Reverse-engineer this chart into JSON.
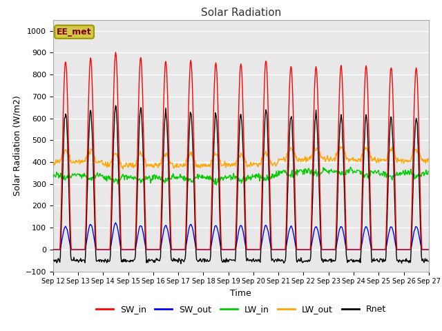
{
  "title": "Solar Radiation",
  "xlabel": "Time",
  "ylabel": "Solar Radiation (W/m2)",
  "ylim": [
    -100,
    1050
  ],
  "xlim_days": [
    12,
    27
  ],
  "legend_labels": [
    "SW_in",
    "SW_out",
    "LW_in",
    "LW_out",
    "Rnet"
  ],
  "line_colors": [
    "#ff0000",
    "#0000ff",
    "#00cc00",
    "#ffa500",
    "#000000"
  ],
  "annotation_text": "EE_met",
  "annotation_box_color": "#d4c84a",
  "annotation_text_color": "#800000",
  "background_color": "#e8e8e8",
  "grid_color": "#ffffff",
  "tick_labels": [
    "Sep 12",
    "Sep 13",
    "Sep 14",
    "Sep 15",
    "Sep 16",
    "Sep 17",
    "Sep 18",
    "Sep 19",
    "Sep 20",
    "Sep 21",
    "Sep 22",
    "Sep 23",
    "Sep 24",
    "Sep 25",
    "Sep 26",
    "Sep 27"
  ],
  "SW_in_peak": [
    860,
    875,
    900,
    880,
    860,
    865,
    855,
    850,
    865,
    840,
    835,
    840,
    840,
    835,
    830
  ],
  "SW_out_peak": [
    105,
    115,
    120,
    110,
    110,
    115,
    110,
    110,
    110,
    105,
    105,
    105,
    105,
    105,
    105
  ],
  "LW_in_base": [
    340,
    340,
    330,
    330,
    330,
    330,
    330,
    330,
    335,
    355,
    360,
    360,
    355,
    350,
    350
  ],
  "LW_out_base": [
    400,
    400,
    385,
    385,
    385,
    385,
    385,
    385,
    390,
    410,
    415,
    415,
    410,
    405,
    405
  ]
}
